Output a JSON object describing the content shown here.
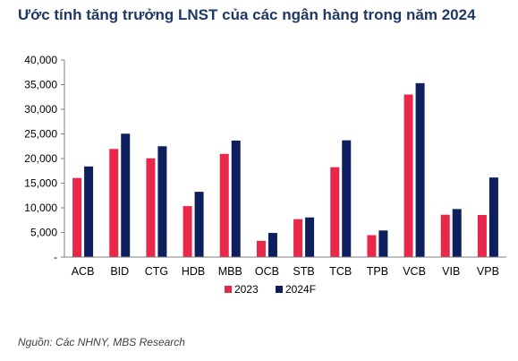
{
  "title": "Ước tính tăng trưởng LNST của các ngân hàng trong năm 2024",
  "source": "Nguồn: Các NHNY, MBS Research",
  "colors": {
    "series_2023": "#e8274b",
    "series_2024F": "#0d1f5c",
    "text": "#1f3864",
    "axis": "#7f7f7f"
  },
  "chart_data": {
    "type": "bar",
    "title": "Ước tính tăng trưởng LNST của các ngân hàng trong năm 2024",
    "xlabel": "",
    "ylabel": "",
    "ylim": [
      0,
      40000
    ],
    "y_ticks": [
      "-",
      "5,000",
      "10,000",
      "15,000",
      "20,000",
      "25,000",
      "30,000",
      "35,000",
      "40,000"
    ],
    "grid": false,
    "legend_position": "bottom",
    "categories": [
      "ACB",
      "BID",
      "CTG",
      "HDB",
      "MBB",
      "OCB",
      "STB",
      "TCB",
      "TPB",
      "VCB",
      "VIB",
      "VPB"
    ],
    "series": [
      {
        "name": "2023",
        "values": [
          16050,
          21950,
          20050,
          10350,
          20950,
          3300,
          7700,
          18250,
          4450,
          33000,
          8600,
          8550
        ]
      },
      {
        "name": "2024F",
        "values": [
          18400,
          25050,
          22500,
          13250,
          23650,
          4900,
          8050,
          23700,
          5400,
          35300,
          9750,
          16150
        ]
      }
    ]
  }
}
